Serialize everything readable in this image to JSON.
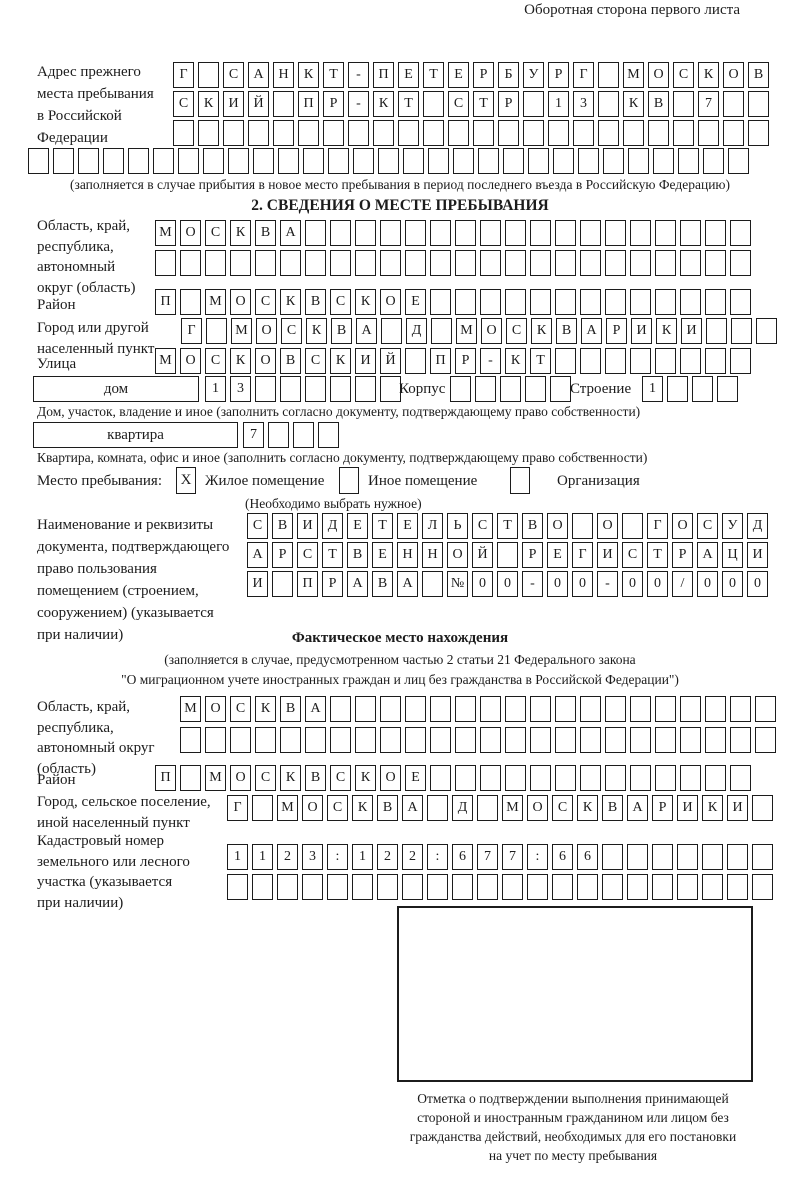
{
  "colors": {
    "ink": "#1c1c1c",
    "paper": "#ffffff"
  },
  "header": {
    "note": "Оборотная сторона первого листа"
  },
  "prev_address": {
    "label": [
      "Адрес прежнего",
      "места пребывания",
      "в Российской",
      "Федерации"
    ],
    "row1": {
      "chars": "Г САНКТ-ПЕТЕРБУРГ МОСКОВ",
      "count": 24
    },
    "row2": {
      "chars": "СКИЙ ПР-КТ СТР 13 КВ 7",
      "count": 24
    },
    "row3": {
      "chars": "",
      "count": 24
    },
    "row4": {
      "chars": "",
      "count": 29
    },
    "note": "(заполняется в случае прибытия в новое место пребывания в период последнего въезда в Российскую Федерацию)"
  },
  "section2": {
    "title": "2. СВЕДЕНИЯ О МЕСТЕ ПРЕБЫВАНИЯ",
    "region": {
      "label": [
        "Область, край,",
        "республика,",
        "автономный",
        "округ (область)"
      ],
      "row1": {
        "chars": "МОСКВА",
        "count": 24
      },
      "row2": {
        "chars": "",
        "count": 24
      }
    },
    "district": {
      "label": "Район",
      "row": {
        "chars": "П МОСКВСКОЕ",
        "count": 24
      }
    },
    "city": {
      "label": [
        "Город или другой",
        "населенный пункт"
      ],
      "row": {
        "chars": "Г МОСКВА Д МОСКВАРИКИ",
        "count": 24
      }
    },
    "street": {
      "label": "Улица",
      "row": {
        "chars": "МОСКОВСКИЙ ПР-КТ",
        "count": 24
      }
    },
    "house": {
      "box_label": "дом",
      "cells": {
        "chars": "13",
        "count": 8
      },
      "korpus_label": "Корпус",
      "korpus_cells": {
        "chars": "",
        "count": 5
      },
      "stroenie_label": "Строение",
      "stroenie_cells": {
        "chars": "1",
        "count": 4
      },
      "note": "Дом, участок, владение и иное (заполнить согласно документу, подтверждающему право собственности)"
    },
    "apartment": {
      "box_label": "квартира",
      "cells": {
        "chars": "7",
        "count": 4
      },
      "note": "Квартира, комната, офис и иное (заполнить согласно документу, подтверждающему право собственности)"
    },
    "stay_type": {
      "label": "Место пребывания:",
      "options": [
        {
          "label": "Жилое помещение",
          "mark": "X"
        },
        {
          "label": "Иное помещение",
          "mark": ""
        },
        {
          "label": "Организация",
          "mark": ""
        }
      ],
      "note": "(Необходимо выбрать нужное)"
    },
    "document": {
      "label": [
        "Наименование и реквизиты",
        "документа, подтверждающего",
        "право пользования",
        "помещением (строением,",
        "сооружением) (указывается",
        "при наличии)"
      ],
      "row1": {
        "chars": "СВИДЕТЕЛЬСТВО О ГОСУД",
        "count": 21
      },
      "row2": {
        "chars": "АРСТВЕННОЙ РЕГИСТРАЦИ",
        "count": 21
      },
      "row3": {
        "chars": "И ПРАВА №00-00-00/000",
        "count": 21
      }
    }
  },
  "actual_location": {
    "title": "Фактическое место нахождения",
    "subtitle": [
      "(заполняется в случае, предусмотренном частью 2 статьи 21 Федерального закона",
      "\"О миграционном учете иностранных граждан и лиц без гражданства в Российской Федерации\")"
    ],
    "region": {
      "label": [
        "Область, край,",
        "республика,",
        "автономный округ",
        "(область)"
      ],
      "row1": {
        "chars": "МОСКВА",
        "count": 24
      },
      "row2": {
        "chars": "",
        "count": 24
      }
    },
    "district": {
      "label": "Район",
      "row": {
        "chars": "П МОСКВСКОЕ",
        "count": 24
      }
    },
    "city": {
      "label": [
        "Город, сельское поселение,",
        "иной населенный пункт"
      ],
      "row": {
        "chars": "Г МОСКВА Д МОСКВАРИКИ",
        "count": 22
      }
    },
    "cadastre": {
      "label": [
        "Кадастровый номер",
        "земельного или лесного",
        "участка (указывается",
        "при наличии)"
      ],
      "row1": {
        "chars": "1123:122:677:66",
        "count": 22
      },
      "row2": {
        "chars": "",
        "count": 22
      }
    },
    "mark_note": [
      "Отметка о подтверждении выполнения принимающей",
      "стороной и иностранным гражданином или лицом без",
      "гражданства действий, необходимых для его постановки",
      "на учет по месту пребывания"
    ]
  }
}
